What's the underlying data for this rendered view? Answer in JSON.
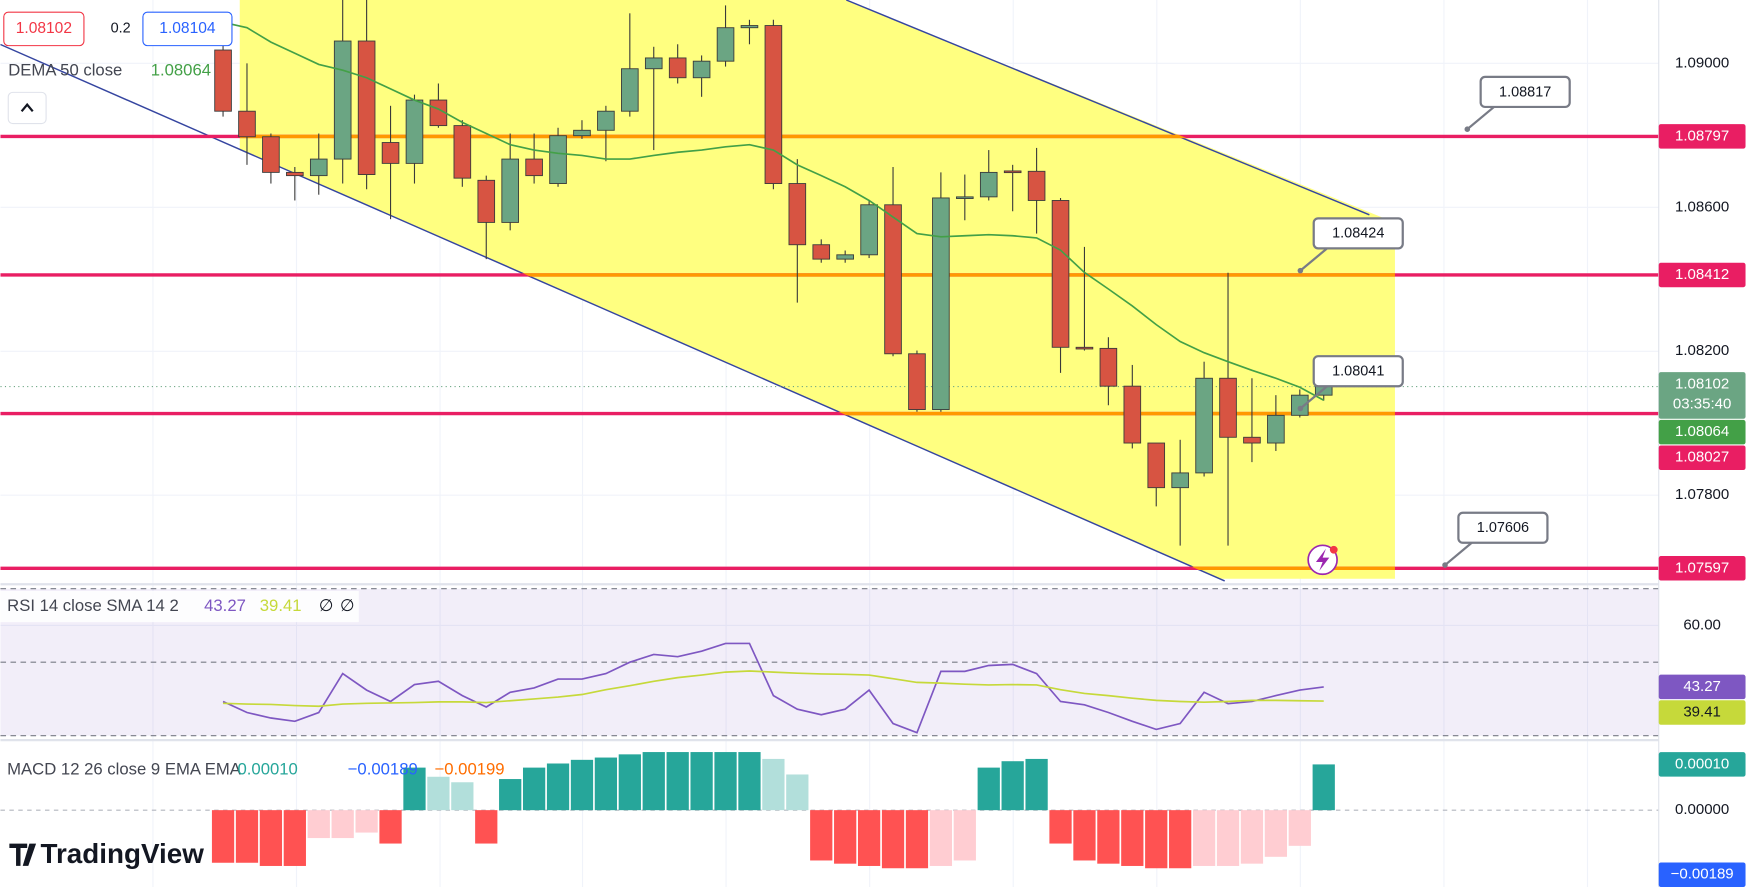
{
  "chart_data": [
    {
      "type": "candlestick",
      "legend": {
        "bid": 1.08102,
        "spread": 0.2,
        "ask": 1.08104
      },
      "open": [
        1.09037,
        1.08867,
        1.08796,
        1.08697,
        1.08688,
        1.08734,
        1.09062,
        1.0878,
        1.08722,
        1.08898,
        1.08827,
        1.08675,
        1.08558,
        1.08734,
        1.08666,
        1.08799,
        1.08814,
        1.08867,
        1.08985,
        1.09015,
        1.0896,
        1.09006,
        1.09099,
        1.09105,
        1.08666,
        1.08496,
        1.08456,
        1.08468,
        1.08607,
        1.08193,
        1.08038,
        1.08626,
        1.08629,
        1.08701,
        1.087,
        1.08619,
        1.08211,
        1.08208,
        1.08103,
        1.07945,
        1.07821,
        1.07862,
        1.08125,
        1.07961,
        1.07945,
        1.08022,
        1.08078
      ],
      "high": [
        1.09084,
        1.09,
        1.08805,
        1.08712,
        1.08805,
        1.09176,
        1.09176,
        1.08882,
        1.08913,
        1.08944,
        1.08842,
        1.08688,
        1.08805,
        1.08805,
        1.08821,
        1.08842,
        1.08882,
        1.09139,
        1.09046,
        1.09053,
        1.09022,
        1.09161,
        1.09121,
        1.09121,
        1.08734,
        1.08511,
        1.0848,
        1.08619,
        1.08712,
        1.08202,
        1.08697,
        1.08691,
        1.08759,
        1.08718,
        1.08765,
        1.08626,
        1.0849,
        1.08239,
        1.08162,
        1.07945,
        1.07954,
        1.08171,
        1.08418,
        1.08125,
        1.08078,
        1.08094,
        1.08125
      ],
      "low": [
        1.08852,
        1.08718,
        1.08666,
        1.08619,
        1.08635,
        1.08666,
        1.0865,
        1.08567,
        1.08666,
        1.08821,
        1.08657,
        1.08456,
        1.08536,
        1.08666,
        1.08657,
        1.0879,
        1.08728,
        1.08852,
        1.08759,
        1.08944,
        1.08907,
        1.08991,
        1.09053,
        1.0865,
        1.08335,
        1.08446,
        1.08446,
        1.08459,
        1.08186,
        1.08032,
        1.08032,
        1.08564,
        1.08619,
        1.08589,
        1.08527,
        1.0814,
        1.08202,
        1.0805,
        1.0793,
        1.07769,
        1.0766,
        1.07852,
        1.0766,
        1.07892,
        1.07923,
        1.08016,
        1.08063
      ],
      "close": [
        1.08867,
        1.08796,
        1.08697,
        1.08688,
        1.08734,
        1.09062,
        1.08691,
        1.08722,
        1.08898,
        1.08827,
        1.08681,
        1.08558,
        1.08734,
        1.08688,
        1.08799,
        1.08814,
        1.08867,
        1.08985,
        1.09015,
        1.0896,
        1.09006,
        1.09099,
        1.09105,
        1.08666,
        1.08496,
        1.08456,
        1.08468,
        1.08607,
        1.08193,
        1.08038,
        1.08626,
        1.08629,
        1.08697,
        1.087,
        1.08619,
        1.08211,
        1.08208,
        1.08103,
        1.07945,
        1.07821,
        1.07862,
        1.08125,
        1.07961,
        1.07945,
        1.08022,
        1.08078,
        1.08102
      ],
      "up_color": "#6ba583",
      "down_color": "#d75442",
      "overlay": {
        "name": "DEMA 50 close",
        "color": "#43a047",
        "values": [
          1.09114,
          1.09099,
          1.09059,
          1.09028,
          1.08997,
          1.08981,
          1.0896,
          1.08929,
          1.08898,
          1.08873,
          1.08836,
          1.08805,
          1.08774,
          1.08759,
          1.0875,
          1.08744,
          1.08734,
          1.08734,
          1.08744,
          1.08753,
          1.08759,
          1.08768,
          1.08774,
          1.08759,
          1.08718,
          1.08688,
          1.08657,
          1.08619,
          1.08573,
          1.08527,
          1.08518,
          1.08521,
          1.08524,
          1.08521,
          1.08515,
          1.08481,
          1.08419,
          1.08373,
          1.08326,
          1.08274,
          1.08227,
          1.08196,
          1.08171,
          1.08147,
          1.08125,
          1.081,
          1.08064
        ]
      },
      "ylim": [
        1.07568,
        1.09176
      ],
      "yticks": [
        {
          "value": 1.09,
          "label": "1.09000"
        },
        {
          "value": 1.086,
          "label": "1.08600"
        },
        {
          "value": 1.082,
          "label": "1.08200"
        },
        {
          "value": 1.078,
          "label": "1.07800"
        }
      ],
      "levels": [
        1.08797,
        1.08412,
        1.08027,
        1.07597
      ],
      "level_color": "#e91e63",
      "callouts": [
        1.08817,
        1.08424,
        1.08041,
        1.07606
      ],
      "countdown": "03:35:40",
      "grid": true
    },
    {
      "type": "line",
      "title": "RSI 14 close SMA 14 2",
      "series": [
        {
          "color": "#7e57c2",
          "values": [
            39.3,
            36.3,
            34.8,
            33.9,
            36.3,
            46.9,
            42.4,
            39.3,
            43.9,
            44.8,
            40.9,
            37.8,
            41.8,
            43.0,
            45.4,
            45.4,
            46.9,
            50.0,
            52.1,
            51.5,
            53.0,
            55.1,
            55.1,
            40.9,
            37.2,
            35.7,
            37.2,
            42.4,
            33.3,
            30.8,
            47.5,
            47.5,
            49.1,
            49.4,
            46.9,
            39.3,
            38.4,
            36.3,
            33.9,
            31.7,
            33.3,
            41.8,
            38.7,
            39.3,
            40.9,
            42.4,
            43.27
          ]
        },
        {
          "color": "#c6d93a",
          "values": [
            38.8,
            38.6,
            38.5,
            38.2,
            38.0,
            38.6,
            38.8,
            38.9,
            39.0,
            39.2,
            39.2,
            39.0,
            39.5,
            40.0,
            40.5,
            41.2,
            42.5,
            43.6,
            44.8,
            45.8,
            46.5,
            47.3,
            47.6,
            47.3,
            47.0,
            46.8,
            46.7,
            46.5,
            45.5,
            44.5,
            44.3,
            44.0,
            43.8,
            43.9,
            43.8,
            42.5,
            41.5,
            40.9,
            40.2,
            39.6,
            39.3,
            39.1,
            39.3,
            39.6,
            39.6,
            39.5,
            39.41
          ]
        }
      ],
      "na_labels": [
        "∅",
        "∅"
      ],
      "ylim": [
        30,
        70
      ],
      "yticks": [
        {
          "value": 60,
          "label": "60.00"
        }
      ],
      "levels": [
        70,
        50,
        30
      ]
    },
    {
      "type": "histogram",
      "title": "MACD 12 26 close 9 EMA EMA",
      "values": [
        -0.000115,
        -0.000115,
        -0.000122,
        -0.000122,
        -6.1e-05,
        -6.1e-05,
        -4.9e-05,
        -7.3e-05,
        9.3e-05,
        7.3e-05,
        6.1e-05,
        -7.3e-05,
        6.8e-05,
        9.3e-05,
        0.000102,
        0.00011,
        0.000115,
        0.000122,
        0.000127,
        0.000127,
        0.000127,
        0.000127,
        0.000127,
        0.000112,
        7.8e-05,
        -0.00011,
        -0.000117,
        -0.000122,
        -0.000127,
        -0.000127,
        -0.000122,
        -0.00011,
        9.3e-05,
        0.000107,
        0.000112,
        -7.3e-05,
        -0.00011,
        -0.000117,
        -0.000122,
        -0.000127,
        -0.000127,
        -0.000122,
        -0.000122,
        -0.000117,
        -0.000102,
        -7.8e-05,
        0.0001
      ],
      "colors": [
        "#ff5252",
        "#ff5252",
        "#ff5252",
        "#ff5252",
        "#ffcdd2",
        "#ffcdd2",
        "#ffcdd2",
        "#ff5252",
        "#26a69a",
        "#b2dfdb",
        "#b2dfdb",
        "#ff5252",
        "#26a69a",
        "#26a69a",
        "#26a69a",
        "#26a69a",
        "#26a69a",
        "#26a69a",
        "#26a69a",
        "#26a69a",
        "#26a69a",
        "#26a69a",
        "#26a69a",
        "#b2dfdb",
        "#b2dfdb",
        "#ff5252",
        "#ff5252",
        "#ff5252",
        "#ff5252",
        "#ff5252",
        "#ffcdd2",
        "#ffcdd2",
        "#26a69a",
        "#26a69a",
        "#26a69a",
        "#ff5252",
        "#ff5252",
        "#ff5252",
        "#ff5252",
        "#ff5252",
        "#ff5252",
        "#ffcdd2",
        "#ffcdd2",
        "#ffcdd2",
        "#ffcdd2",
        "#ffcdd2",
        "#26a69a"
      ],
      "legend": [
        {
          "value": 0.0001,
          "label": "0.00010",
          "color": "#26a69a"
        },
        {
          "value": -0.00189,
          "label": "−0.00189",
          "color": "#2962ff"
        },
        {
          "value": -0.00199,
          "label": "−0.00199",
          "color": "#ff6d00"
        }
      ],
      "ylim": [
        -0.000168,
        0.000141
      ],
      "yticks": [
        {
          "value": 0,
          "label": "0.00000"
        }
      ]
    }
  ],
  "branding": "TradingView"
}
